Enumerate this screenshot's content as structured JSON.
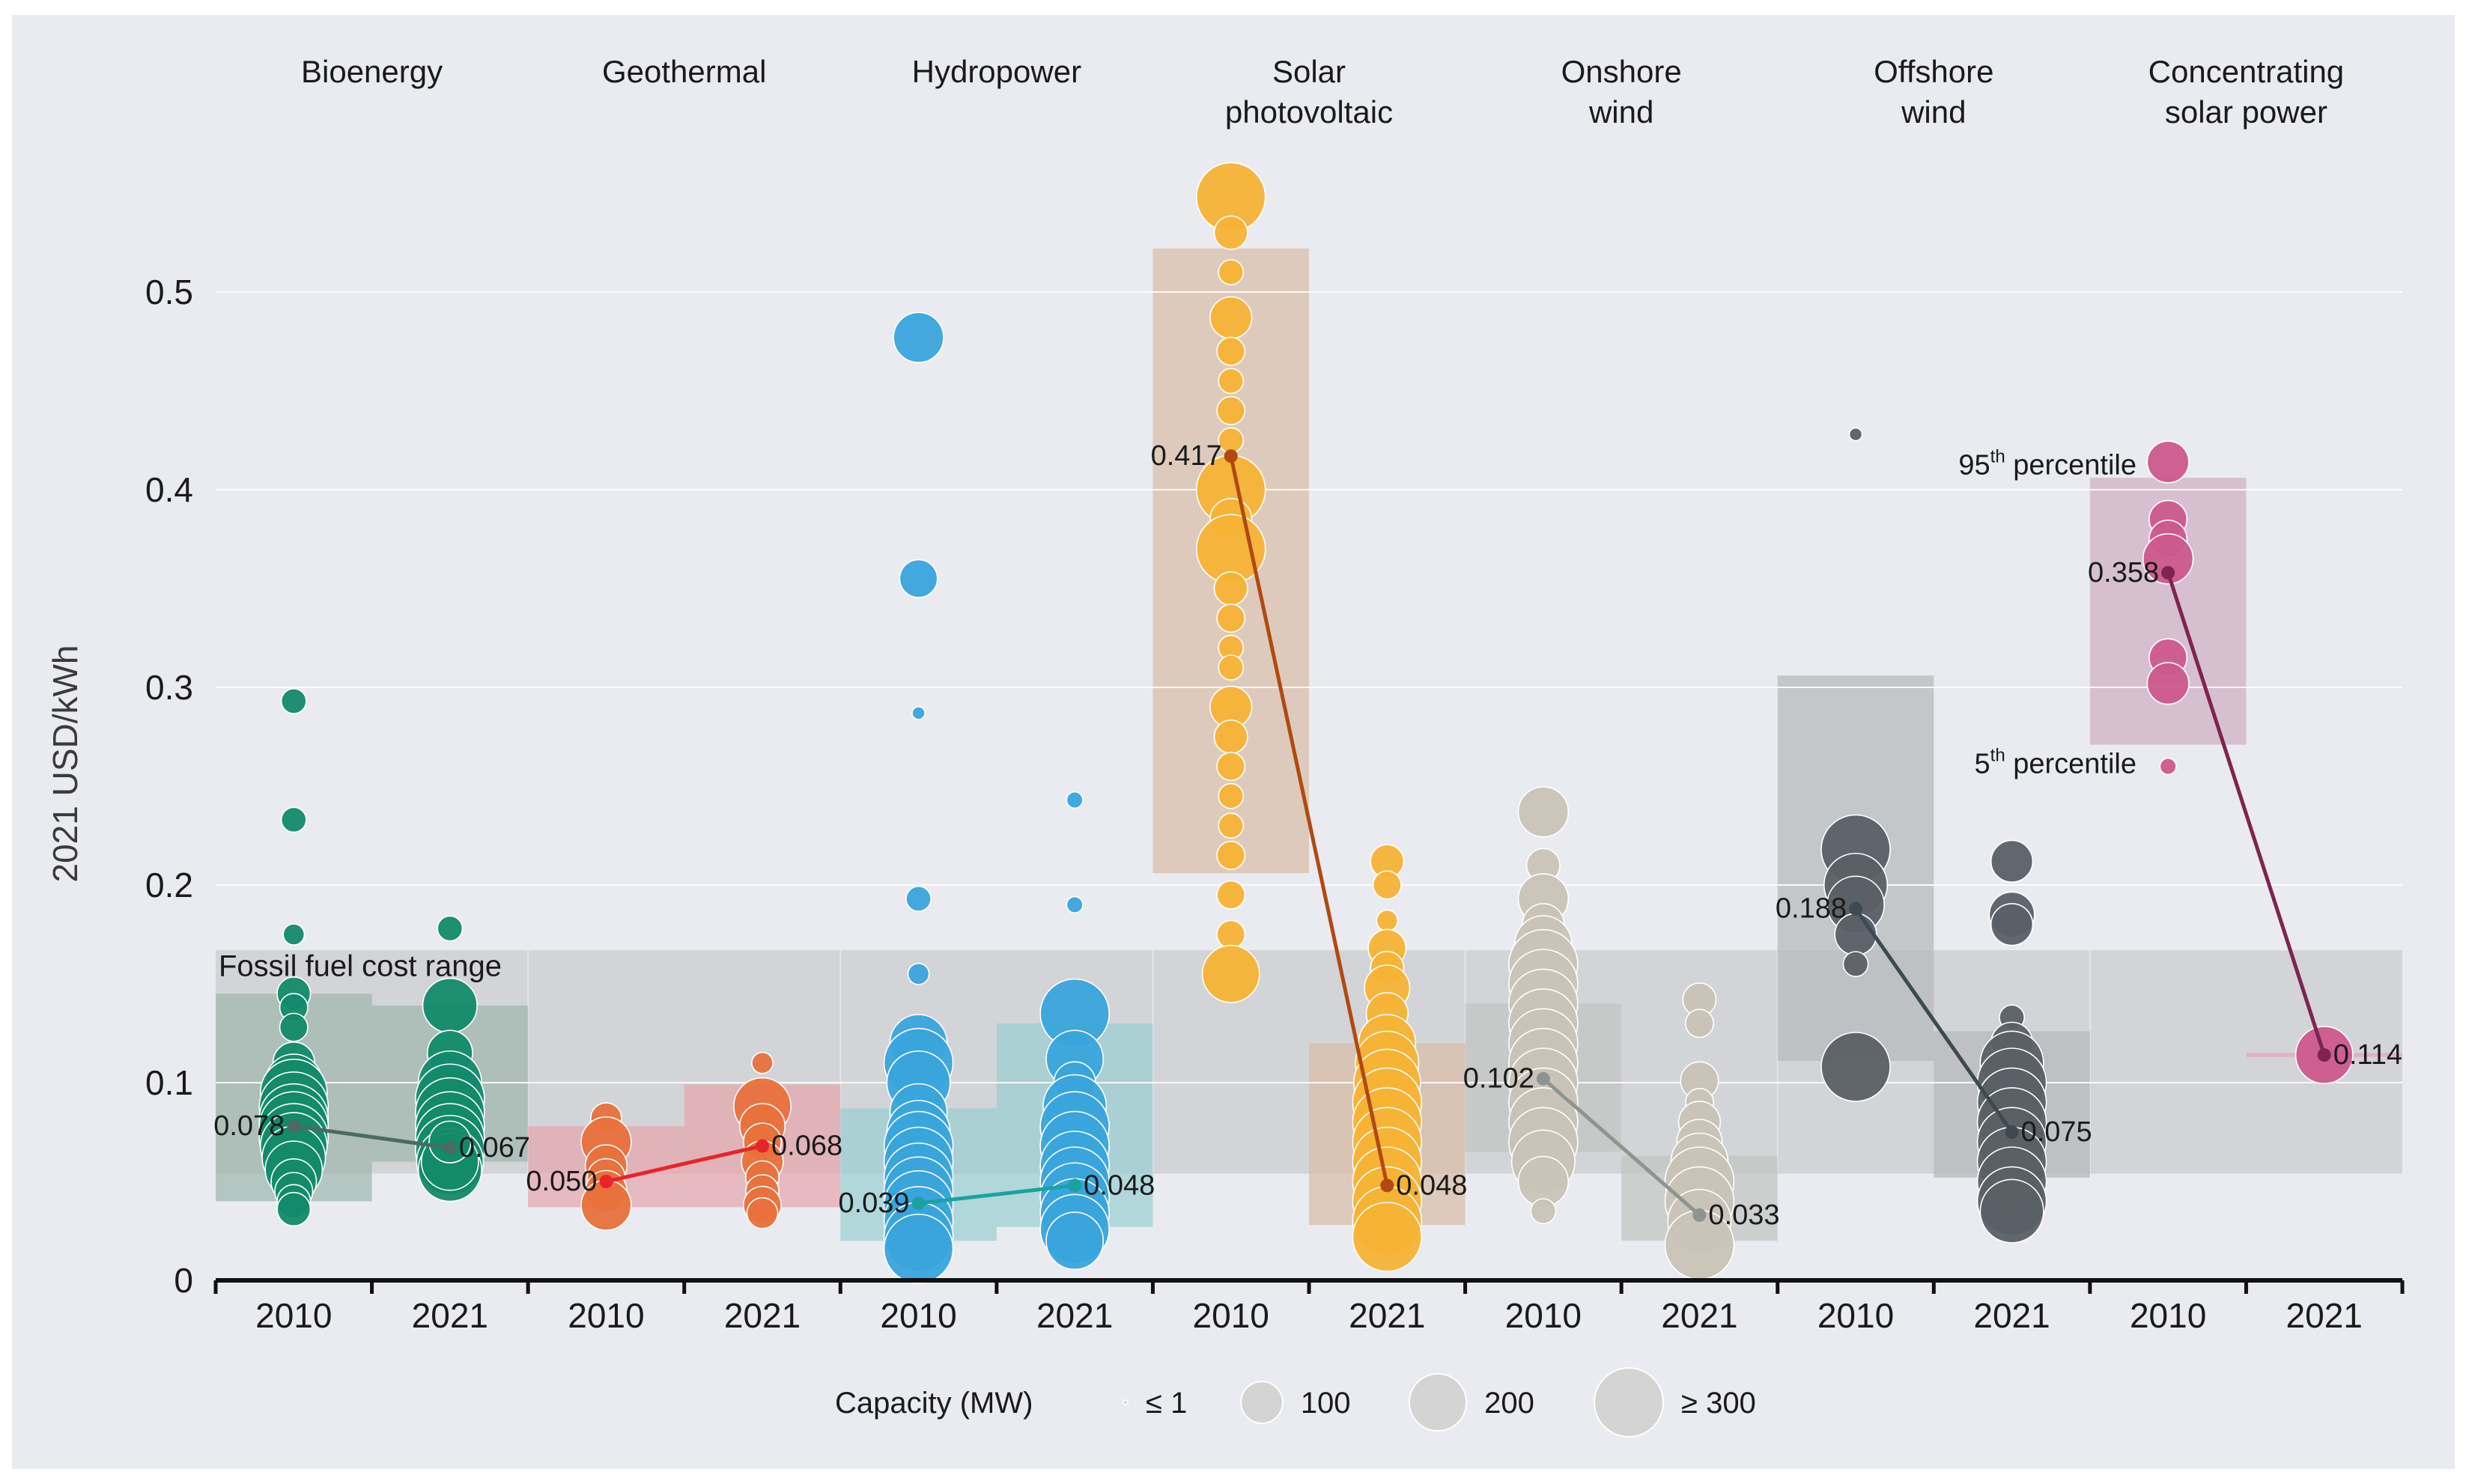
{
  "chart_data": {
    "type": "scatter",
    "ylabel": "2021 USD/kWh",
    "yticks": [
      0,
      0.1,
      0.2,
      0.3,
      0.4,
      0.5
    ],
    "ytick_labels": [
      "0",
      "0.1",
      "0.2",
      "0.3",
      "0.4",
      "0.5"
    ],
    "ylim": [
      0,
      0.57
    ],
    "years": [
      "2010",
      "2021"
    ],
    "fossil_label": "Fossil fuel cost range",
    "fossil_range": [
      0.054,
      0.167
    ],
    "colors": {
      "Bioenergy": "#138a6a",
      "Geothermal": "#e8713c",
      "Hydropower": "#3aa4dc",
      "Solar photovoltaic": "#f5b335",
      "Onshore wind": "#c9c3b6",
      "Offshore wind": "#5a6066",
      "Concentrating solar power": "#cc5a8c",
      "background": "#e9ebf0",
      "fossil_band": "#d2d4d7"
    },
    "technologies": [
      {
        "name": "Bioenergy",
        "label_lines": [
          "Bioenergy"
        ],
        "line_color": "#4a6b63",
        "averages": [
          0.078,
          0.067
        ],
        "average_labels": [
          "0.078",
          "0.067"
        ],
        "percentile_ranges": [
          [
            0.04,
            0.145
          ],
          [
            0.06,
            0.139
          ]
        ],
        "range_colors": [
          "#9fb7ae",
          "#9fb7ae"
        ],
        "projects": [
          [
            [
              0.293,
              30
            ],
            [
              0.233,
              30
            ],
            [
              0.175,
              20
            ],
            [
              0.145,
              60
            ],
            [
              0.138,
              40
            ],
            [
              0.128,
              40
            ],
            [
              0.11,
              100
            ],
            [
              0.1,
              200
            ],
            [
              0.095,
              280
            ],
            [
              0.088,
              300
            ],
            [
              0.082,
              300
            ],
            [
              0.078,
              300
            ],
            [
              0.072,
              300
            ],
            [
              0.068,
              280
            ],
            [
              0.062,
              250
            ],
            [
              0.056,
              200
            ],
            [
              0.05,
              120
            ],
            [
              0.045,
              80
            ],
            [
              0.04,
              60
            ],
            [
              0.036,
              60
            ]
          ],
          [
            [
              0.178,
              30
            ],
            [
              0.139,
              180
            ],
            [
              0.115,
              120
            ],
            [
              0.1,
              250
            ],
            [
              0.092,
              300
            ],
            [
              0.085,
              300
            ],
            [
              0.078,
              300
            ],
            [
              0.072,
              300
            ],
            [
              0.066,
              300
            ],
            [
              0.06,
              280
            ],
            [
              0.056,
              250
            ],
            [
              0.06,
              200
            ],
            [
              0.07,
              100
            ]
          ]
        ]
      },
      {
        "name": "Geothermal",
        "label_lines": [
          "Geothermal"
        ],
        "line_color": "#e8232b",
        "averages": [
          0.05,
          0.068
        ],
        "average_labels": [
          "0.050",
          "0.068"
        ],
        "percentile_ranges": [
          [
            0.037,
            0.078
          ],
          [
            0.037,
            0.099
          ]
        ],
        "range_colors": [
          "#e5a6ad",
          "#e5a6ad"
        ],
        "projects": [
          [
            [
              0.082,
              50
            ],
            [
              0.07,
              150
            ],
            [
              0.058,
              100
            ],
            [
              0.052,
              80
            ],
            [
              0.045,
              100
            ],
            [
              0.038,
              150
            ]
          ],
          [
            [
              0.11,
              20
            ],
            [
              0.088,
              200
            ],
            [
              0.078,
              120
            ],
            [
              0.07,
              80
            ],
            [
              0.06,
              100
            ],
            [
              0.052,
              60
            ],
            [
              0.045,
              60
            ],
            [
              0.038,
              80
            ],
            [
              0.034,
              50
            ]
          ]
        ]
      },
      {
        "name": "Hydropower",
        "label_lines": [
          "Hydropower"
        ],
        "line_color": "#1aa39e",
        "averages": [
          0.039,
          0.048
        ],
        "average_labels": [
          "0.039",
          "0.048"
        ],
        "percentile_ranges": [
          [
            0.02,
            0.087
          ],
          [
            0.027,
            0.13
          ]
        ],
        "range_colors": [
          "#9bcfd2",
          "#9bcfd2"
        ],
        "projects": [
          [
            [
              0.477,
              150
            ],
            [
              0.355,
              80
            ],
            [
              0.287,
              5
            ],
            [
              0.193,
              30
            ],
            [
              0.155,
              20
            ],
            [
              0.12,
              200
            ],
            [
              0.11,
              300
            ],
            [
              0.1,
              250
            ],
            [
              0.085,
              200
            ],
            [
              0.075,
              250
            ],
            [
              0.068,
              300
            ],
            [
              0.06,
              300
            ],
            [
              0.052,
              300
            ],
            [
              0.045,
              300
            ],
            [
              0.038,
              300
            ],
            [
              0.03,
              300
            ],
            [
              0.022,
              300
            ],
            [
              0.016,
              300
            ]
          ],
          [
            [
              0.243,
              10
            ],
            [
              0.19,
              10
            ],
            [
              0.135,
              300
            ],
            [
              0.112,
              200
            ],
            [
              0.1,
              100
            ],
            [
              0.088,
              250
            ],
            [
              0.078,
              300
            ],
            [
              0.068,
              300
            ],
            [
              0.058,
              300
            ],
            [
              0.05,
              300
            ],
            [
              0.042,
              300
            ],
            [
              0.034,
              300
            ],
            [
              0.026,
              300
            ],
            [
              0.02,
              200
            ]
          ]
        ]
      },
      {
        "name": "Solar photovoltaic",
        "label_lines": [
          "Solar",
          "photovoltaic"
        ],
        "line_color": "#b04a10",
        "averages": [
          0.417,
          0.048
        ],
        "average_labels": [
          "0.417",
          "0.048"
        ],
        "percentile_ranges": [
          [
            0.206,
            0.522
          ],
          [
            0.028,
            0.12
          ]
        ],
        "range_colors": [
          "#d9bca8",
          "#d9bca8"
        ],
        "projects": [
          [
            [
              0.548,
              300
            ],
            [
              0.53,
              60
            ],
            [
              0.51,
              30
            ],
            [
              0.487,
              100
            ],
            [
              0.47,
              40
            ],
            [
              0.455,
              30
            ],
            [
              0.44,
              40
            ],
            [
              0.425,
              30
            ],
            [
              0.4,
              300
            ],
            [
              0.385,
              100
            ],
            [
              0.37,
              300
            ],
            [
              0.35,
              60
            ],
            [
              0.335,
              40
            ],
            [
              0.32,
              30
            ],
            [
              0.31,
              30
            ],
            [
              0.29,
              100
            ],
            [
              0.275,
              60
            ],
            [
              0.26,
              40
            ],
            [
              0.245,
              30
            ],
            [
              0.23,
              30
            ],
            [
              0.215,
              40
            ],
            [
              0.195,
              40
            ],
            [
              0.175,
              40
            ],
            [
              0.155,
              200
            ]
          ],
          [
            [
              0.212,
              60
            ],
            [
              0.2,
              40
            ],
            [
              0.182,
              20
            ],
            [
              0.168,
              80
            ],
            [
              0.158,
              60
            ],
            [
              0.148,
              120
            ],
            [
              0.135,
              100
            ],
            [
              0.12,
              200
            ],
            [
              0.11,
              250
            ],
            [
              0.1,
              280
            ],
            [
              0.09,
              300
            ],
            [
              0.08,
              300
            ],
            [
              0.07,
              300
            ],
            [
              0.06,
              300
            ],
            [
              0.05,
              300
            ],
            [
              0.04,
              300
            ],
            [
              0.03,
              300
            ],
            [
              0.022,
              300
            ]
          ]
        ]
      },
      {
        "name": "Onshore wind",
        "label_lines": [
          "Onshore",
          "wind"
        ],
        "line_color": "#8e9590",
        "averages": [
          0.102,
          0.033
        ],
        "average_labels": [
          "0.102",
          "0.033"
        ],
        "percentile_ranges": [
          [
            0.065,
            0.14
          ],
          [
            0.02,
            0.063
          ]
        ],
        "range_colors": [
          "#c2c3c2",
          "#c2c3c2"
        ],
        "projects": [
          [
            [
              0.237,
              150
            ],
            [
              0.21,
              60
            ],
            [
              0.193,
              150
            ],
            [
              0.18,
              100
            ],
            [
              0.17,
              200
            ],
            [
              0.16,
              300
            ],
            [
              0.15,
              300
            ],
            [
              0.14,
              300
            ],
            [
              0.13,
              300
            ],
            [
              0.12,
              300
            ],
            [
              0.11,
              300
            ],
            [
              0.1,
              300
            ],
            [
              0.09,
              300
            ],
            [
              0.08,
              300
            ],
            [
              0.07,
              300
            ],
            [
              0.06,
              250
            ],
            [
              0.05,
              150
            ],
            [
              0.035,
              30
            ]
          ],
          [
            [
              0.142,
              60
            ],
            [
              0.13,
              40
            ],
            [
              0.101,
              80
            ],
            [
              0.09,
              40
            ],
            [
              0.08,
              100
            ],
            [
              0.07,
              120
            ],
            [
              0.06,
              200
            ],
            [
              0.05,
              300
            ],
            [
              0.04,
              300
            ],
            [
              0.03,
              250
            ],
            [
              0.018,
              300
            ]
          ]
        ]
      },
      {
        "name": "Offshore wind",
        "label_lines": [
          "Offshore",
          "wind"
        ],
        "line_color": "#3d4a4f",
        "averages": [
          0.188,
          0.075
        ],
        "average_labels": [
          "0.188",
          "0.075"
        ],
        "percentile_ranges": [
          [
            0.111,
            0.306
          ],
          [
            0.052,
            0.126
          ]
        ],
        "range_colors": [
          "#b5b8bb",
          "#b5b8bb"
        ],
        "projects": [
          [
            [
              0.428,
              5
            ],
            [
              0.218,
              300
            ],
            [
              0.2,
              250
            ],
            [
              0.19,
              200
            ],
            [
              0.175,
              100
            ],
            [
              0.16,
              30
            ],
            [
              0.108,
              300
            ]
          ],
          [
            [
              0.212,
              100
            ],
            [
              0.185,
              120
            ],
            [
              0.18,
              100
            ],
            [
              0.133,
              30
            ],
            [
              0.12,
              100
            ],
            [
              0.11,
              250
            ],
            [
              0.1,
              300
            ],
            [
              0.09,
              300
            ],
            [
              0.08,
              300
            ],
            [
              0.07,
              300
            ],
            [
              0.06,
              300
            ],
            [
              0.05,
              300
            ],
            [
              0.04,
              300
            ],
            [
              0.035,
              250
            ]
          ]
        ]
      },
      {
        "name": "Concentrating solar power",
        "label_lines": [
          "Concentrating",
          "solar power"
        ],
        "line_color": "#7e2450",
        "averages": [
          0.358,
          0.114
        ],
        "average_labels": [
          "0.358",
          "0.114"
        ],
        "percentile_ranges": [
          [
            0.271,
            0.406
          ],
          [
            0.113,
            0.115
          ]
        ],
        "range_colors": [
          "#cfaec4",
          "#e8a3b8"
        ],
        "projects": [
          [
            [
              0.414,
              100
            ],
            [
              0.385,
              80
            ],
            [
              0.375,
              80
            ],
            [
              0.365,
              150
            ],
            [
              0.315,
              80
            ],
            [
              0.302,
              100
            ],
            [
              0.26,
              10
            ]
          ],
          [
            [
              0.114,
              200
            ]
          ]
        ]
      }
    ],
    "annotations": {
      "p95": {
        "base": "95",
        "sup": "th",
        "text": " percentile",
        "y": 0.413
      },
      "p5": {
        "base": "5",
        "sup": "th",
        "text": " percentile",
        "y": 0.262
      }
    },
    "legend": {
      "title": "Capacity (MW)",
      "items": [
        {
          "label": "≤ 1",
          "mw": 1
        },
        {
          "label": "100",
          "mw": 100
        },
        {
          "label": "200",
          "mw": 200
        },
        {
          "label": "≥ 300",
          "mw": 300
        }
      ]
    }
  }
}
